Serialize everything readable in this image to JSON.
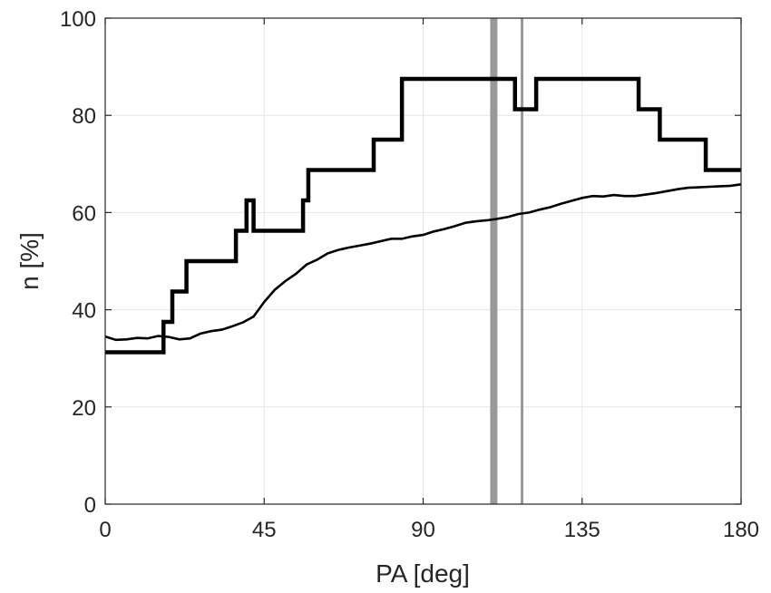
{
  "chart_data": {
    "type": "line",
    "title": "",
    "xlabel": "PA [deg]",
    "ylabel": "n [%]",
    "xlim": [
      0,
      180
    ],
    "ylim": [
      0,
      100
    ],
    "xticks": [
      0,
      45,
      90,
      135,
      180
    ],
    "yticks": [
      0,
      20,
      40,
      60,
      80,
      100
    ],
    "xtick_labels": [
      "0",
      "45",
      "90",
      "135",
      "180"
    ],
    "ytick_labels": [
      "0",
      "20",
      "40",
      "60",
      "80",
      "100"
    ],
    "grid": true,
    "series": [
      {
        "style": "thick-step",
        "color": "#000000",
        "x": [
          0,
          16.5,
          16.5,
          17.5,
          17.5,
          19,
          19,
          23,
          23,
          37,
          37,
          38.5,
          38.5,
          40,
          40,
          42,
          42,
          56,
          56,
          57.5,
          57.5,
          76,
          76,
          84,
          84,
          116,
          116,
          122,
          122,
          151,
          151,
          157,
          157,
          170,
          170,
          180
        ],
        "y": [
          31.25,
          31.25,
          37.5,
          37.5,
          37.5,
          37.5,
          43.75,
          43.75,
          50,
          50,
          56.25,
          56.25,
          56.25,
          56.25,
          62.5,
          62.5,
          56.25,
          56.25,
          62.5,
          62.5,
          68.75,
          68.75,
          75,
          75,
          87.5,
          87.5,
          81.25,
          81.25,
          87.5,
          87.5,
          81.25,
          81.25,
          75,
          75,
          68.75,
          68.75
        ]
      },
      {
        "style": "thin-line",
        "color": "#000000",
        "x": [
          0,
          3,
          6,
          9,
          12,
          15,
          18,
          21,
          24,
          27,
          30,
          33,
          36,
          39,
          42,
          45,
          48,
          51,
          54,
          57,
          60,
          63,
          66,
          69,
          72,
          75,
          78,
          81,
          84,
          87,
          90,
          93,
          96,
          99,
          102,
          105,
          108,
          111,
          114,
          117,
          120,
          123,
          126,
          129,
          132,
          135,
          138,
          141,
          144,
          147,
          150,
          153,
          156,
          159,
          162,
          165,
          168,
          171,
          174,
          177,
          180
        ],
        "y": [
          34.5,
          33.8,
          33.9,
          34.2,
          34.1,
          34.6,
          34.4,
          33.9,
          34.1,
          35.1,
          35.6,
          35.9,
          36.6,
          37.4,
          38.6,
          41.6,
          44.1,
          45.9,
          47.4,
          49.3,
          50.3,
          51.6,
          52.3,
          52.8,
          53.2,
          53.6,
          54.1,
          54.6,
          54.6,
          55.1,
          55.4,
          56.1,
          56.6,
          57.2,
          57.9,
          58.2,
          58.4,
          58.7,
          59.1,
          59.7,
          60.0,
          60.6,
          61.1,
          61.8,
          62.4,
          63.0,
          63.4,
          63.3,
          63.6,
          63.4,
          63.4,
          63.7,
          64.0,
          64.4,
          64.8,
          65.1,
          65.2,
          65.3,
          65.4,
          65.5,
          65.8
        ]
      }
    ],
    "vertical_lines": [
      {
        "x": 110,
        "color": "#999999",
        "style": "thick"
      },
      {
        "x": 118,
        "color": "#999999",
        "style": "thin"
      }
    ]
  }
}
